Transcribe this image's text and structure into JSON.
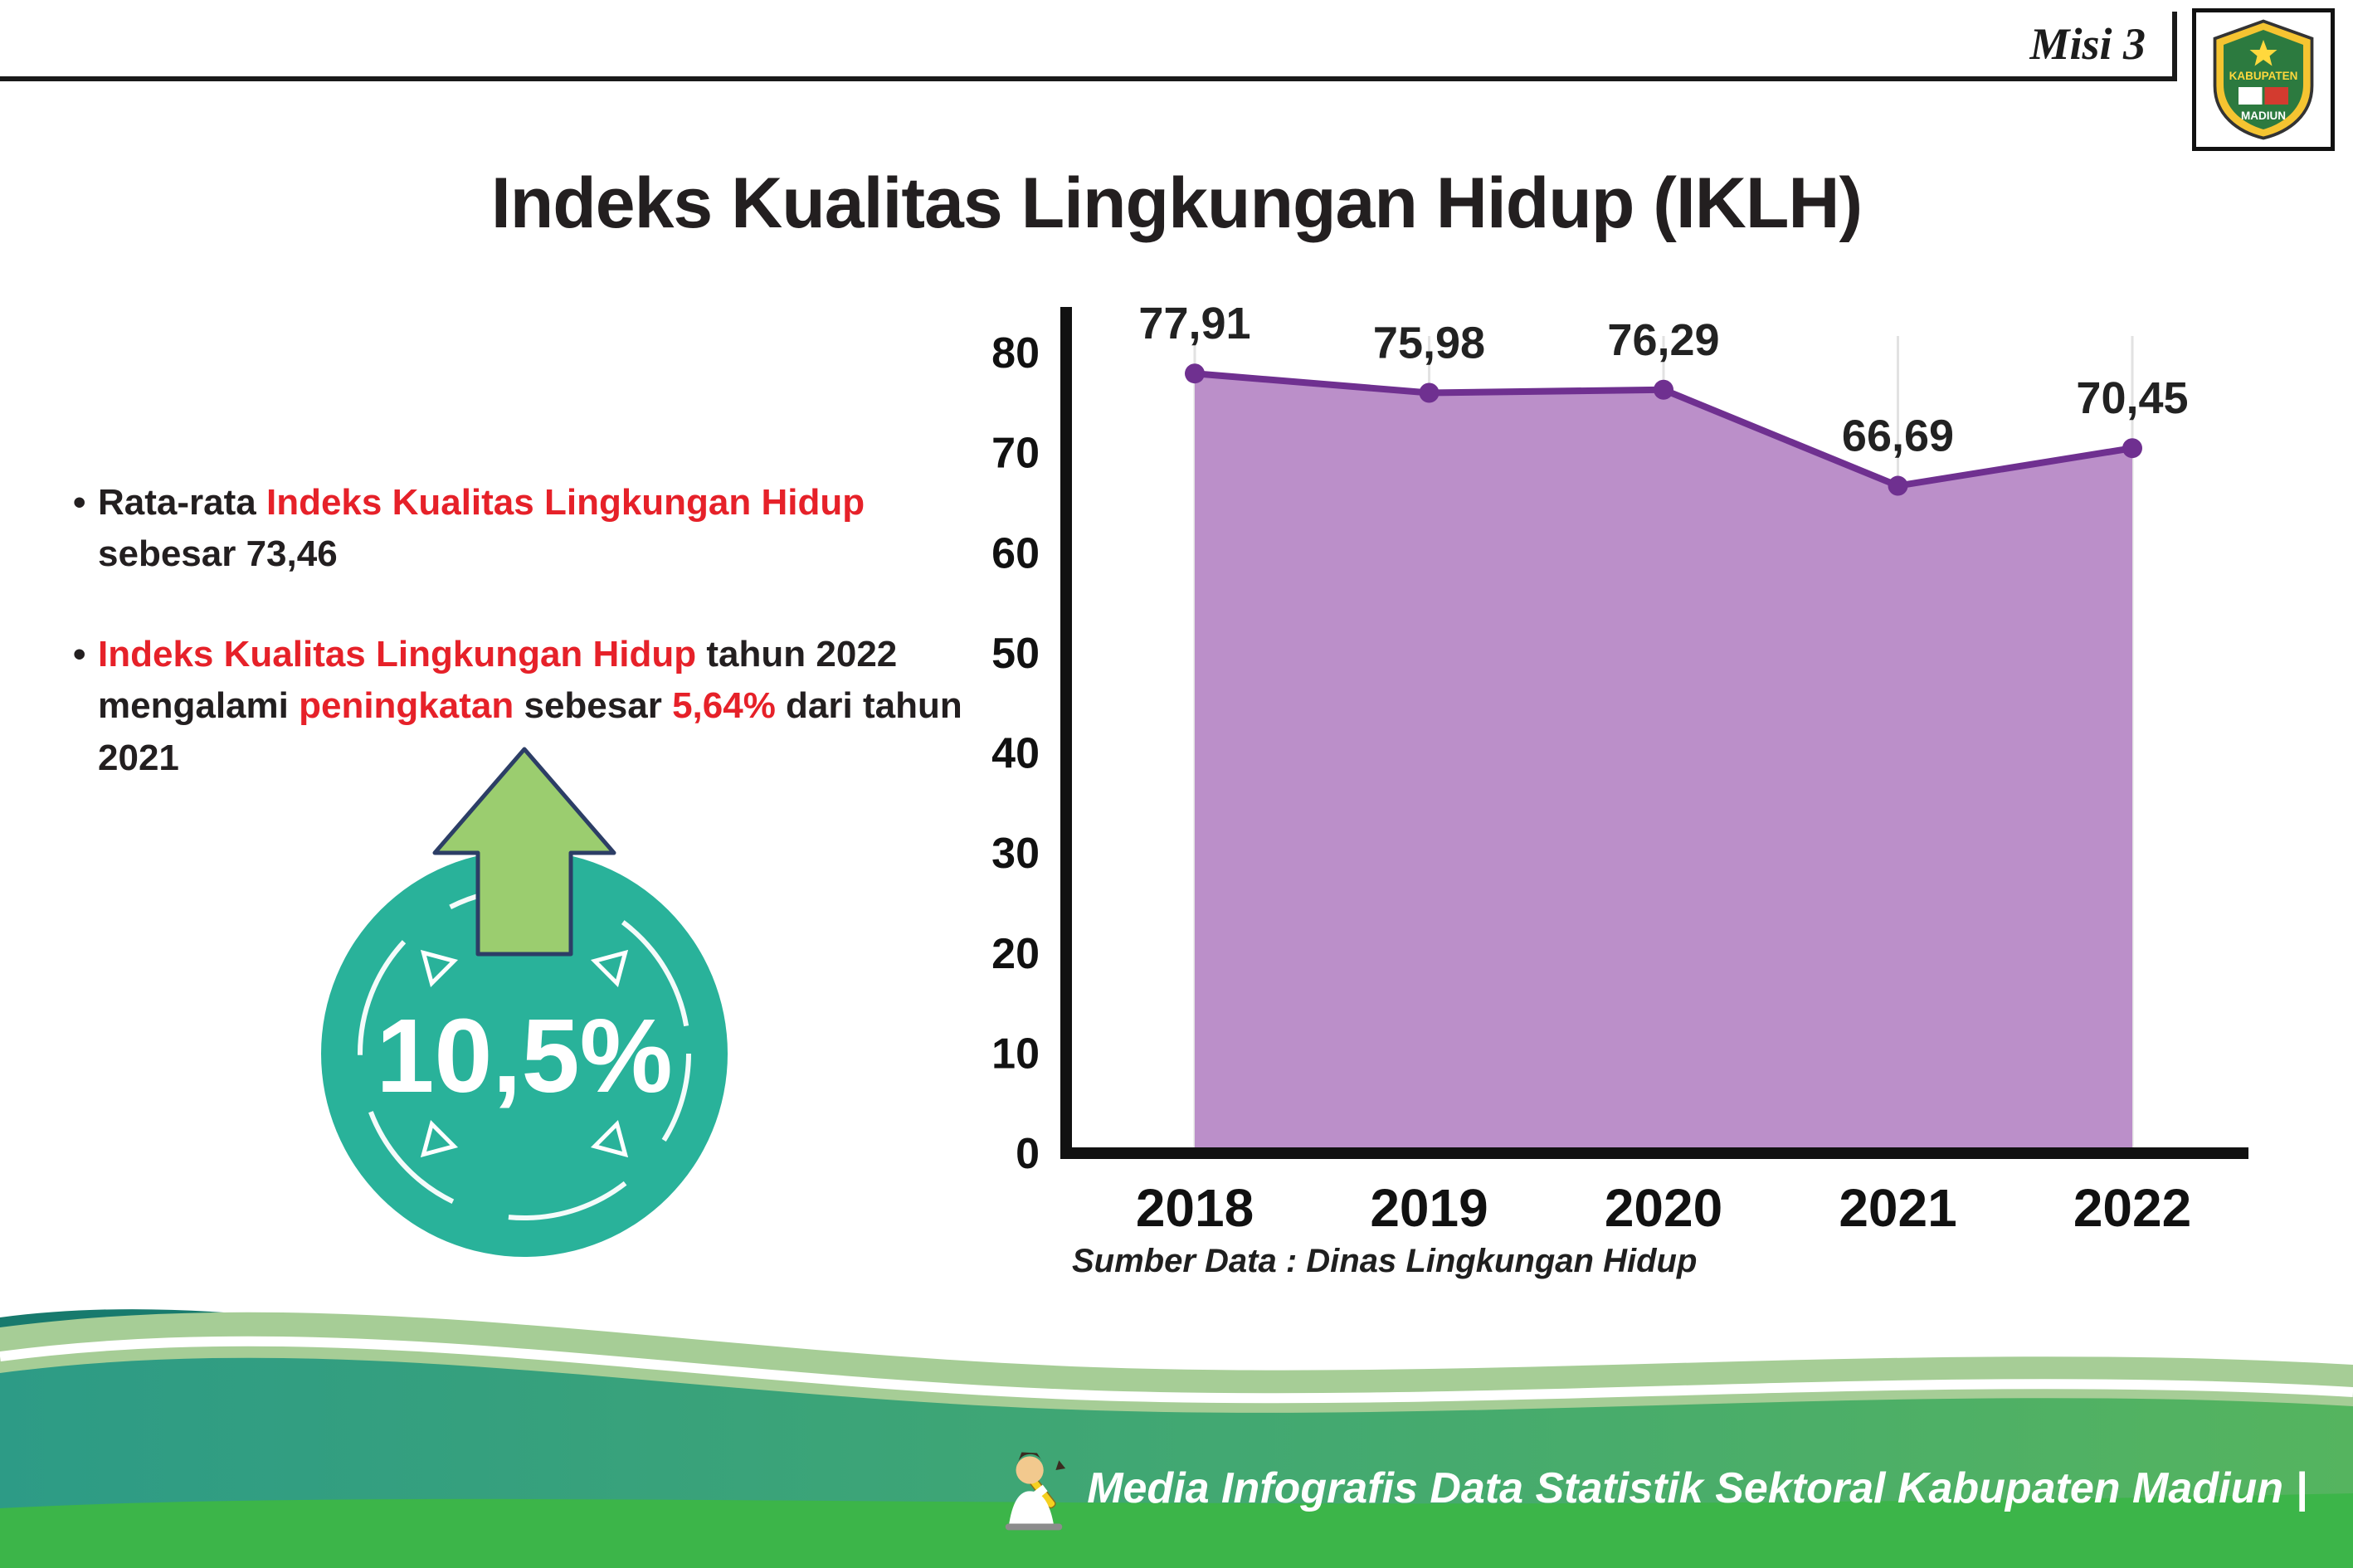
{
  "header": {
    "misi_label": "Misi 3",
    "logo": {
      "top_text": "KABUPATEN",
      "bottom_text": "MADIUN"
    }
  },
  "title": "Indeks Kualitas Lingkungan Hidup (IKLH)",
  "bullets": [
    {
      "segments": [
        {
          "text": "Rata-rata ",
          "color": "#231f20"
        },
        {
          "text": "Indeks Kualitas Lingkungan Hidup",
          "color": "#e62129"
        },
        {
          "text": " sebesar 73,46",
          "color": "#231f20"
        }
      ]
    },
    {
      "segments": [
        {
          "text": "Indeks Kualitas Lingkungan Hidup",
          "color": "#e62129"
        },
        {
          "text": " tahun 2022 mengalami ",
          "color": "#231f20"
        },
        {
          "text": "peningkatan",
          "color": "#e62129"
        },
        {
          "text": " sebesar ",
          "color": "#231f20"
        },
        {
          "text": "5,64%",
          "color": "#e62129"
        },
        {
          "text": " dari tahun 2021",
          "color": "#231f20"
        }
      ]
    }
  ],
  "badge": {
    "value": "10,5%",
    "circle_color": "#29b29a",
    "arrow_color": "#9bcd6f",
    "arrow_outline_color": "#2c3e66"
  },
  "chart_data": {
    "type": "area",
    "categories": [
      "2018",
      "2019",
      "2020",
      "2021",
      "2022"
    ],
    "values": [
      77.91,
      75.98,
      76.29,
      66.69,
      70.45
    ],
    "value_labels": [
      "77,91",
      "75,98",
      "76,29",
      "66,69",
      "70,45"
    ],
    "title": "",
    "xlabel": "",
    "ylabel": "",
    "ylim": [
      0,
      80
    ],
    "yticks": [
      0,
      10,
      20,
      30,
      40,
      50,
      60,
      70,
      80
    ],
    "grid": true,
    "legend": "none",
    "area_color": "#bb8fc9",
    "line_color": "#6f3090",
    "source_note": "Sumber Data : Dinas Lingkungan Hidup"
  },
  "footer": {
    "text": "Media Infografis Data Statistik Sektoral Kabupaten Madiun |"
  }
}
